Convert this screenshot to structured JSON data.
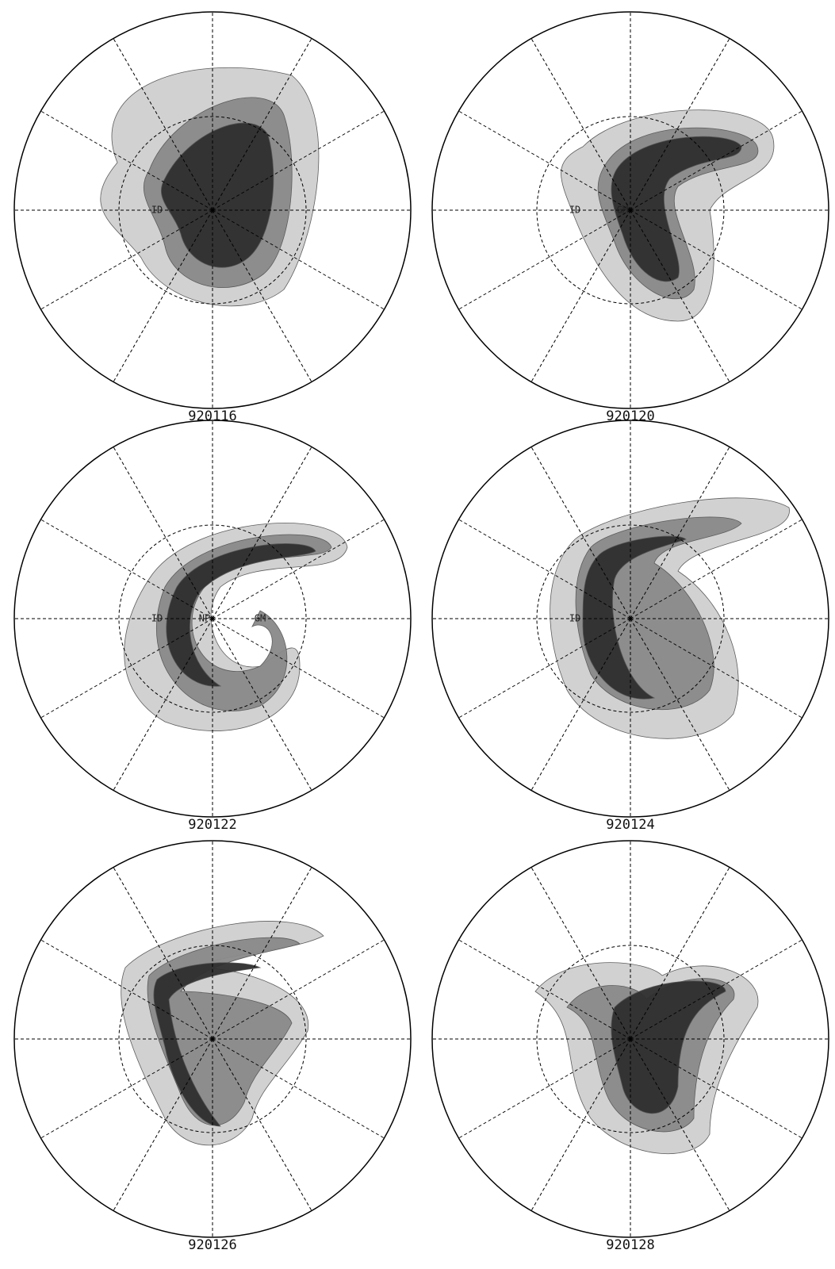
{
  "panels": [
    {
      "label": "920116",
      "marks": [
        "ID"
      ]
    },
    {
      "label": "920120",
      "marks": [
        "ID",
        "GM"
      ]
    },
    {
      "label": "920122",
      "marks": [
        "ID",
        "NP",
        "GM"
      ]
    },
    {
      "label": "920124",
      "marks": [
        "ID"
      ]
    },
    {
      "label": "920126",
      "marks": []
    },
    {
      "label": "920128",
      "marks": []
    }
  ]
}
